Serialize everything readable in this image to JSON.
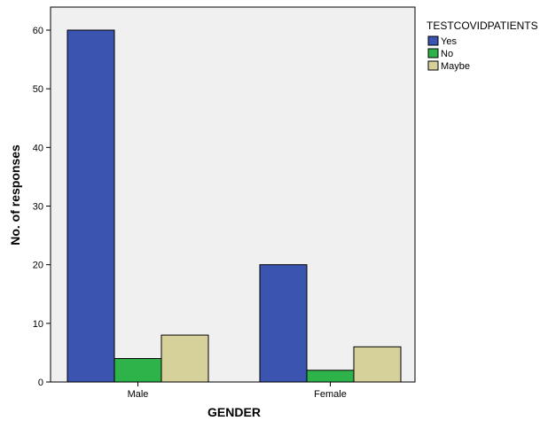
{
  "chart_data": {
    "type": "bar",
    "title": "",
    "xlabel": "GENDER",
    "ylabel": "No. of responses",
    "categories": [
      "Male",
      "Female"
    ],
    "series": [
      {
        "name": "Yes",
        "values": [
          60,
          20
        ],
        "color": "#3a54b0"
      },
      {
        "name": "No",
        "values": [
          4,
          2
        ],
        "color": "#2db34a"
      },
      {
        "name": "Maybe",
        "values": [
          8,
          6
        ],
        "color": "#d6d09a"
      }
    ],
    "ylim": [
      0,
      65
    ],
    "yticks": [
      0,
      10,
      20,
      30,
      40,
      50,
      60
    ],
    "legend": {
      "title": "TESTCOVIDPATIENTS",
      "position": "top-right (outside plot)"
    },
    "plot_background": "#f0f0f0",
    "grid": false
  }
}
